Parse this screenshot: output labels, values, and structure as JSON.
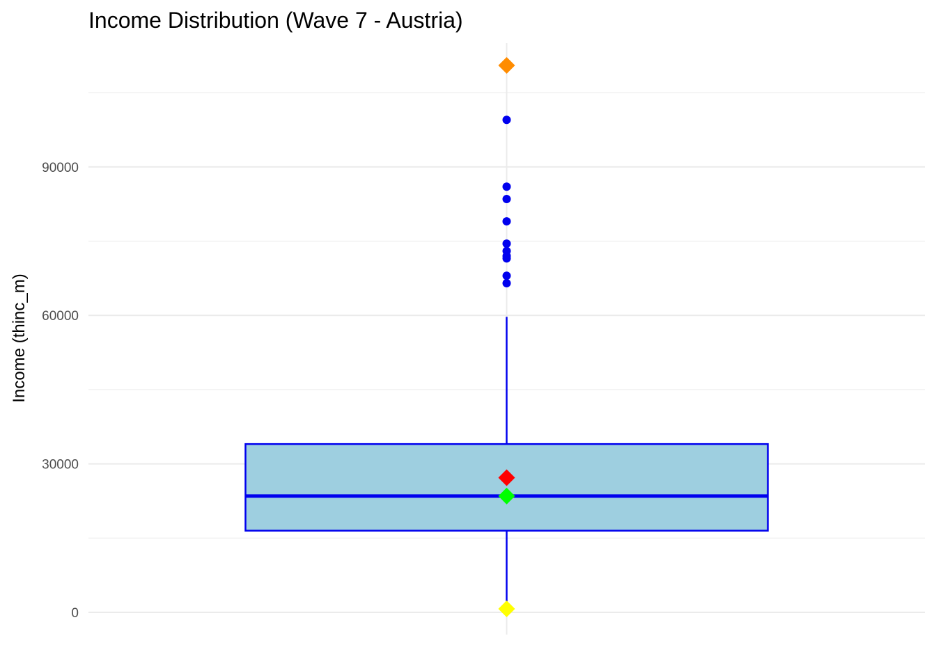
{
  "chart_data": {
    "type": "boxplot",
    "title": "Income Distribution (Wave 7 - Austria)",
    "xlabel": "",
    "ylabel": "Income (thinc_m)",
    "ylim": [
      -4500,
      115000
    ],
    "y_ticks": [
      0,
      30000,
      60000,
      90000
    ],
    "y_tick_labels": [
      "0",
      "30000",
      "60000",
      "90000"
    ],
    "y_minor_ticks": [
      15000,
      45000,
      75000,
      105000
    ],
    "grid": true,
    "box": {
      "whisker_low": 500,
      "q1": 16500,
      "median": 23500,
      "q3": 34000,
      "whisker_high": 59700,
      "fill": "#9ecfe0",
      "stroke": "#0000ee"
    },
    "outliers": [
      66500,
      68000,
      71500,
      72000,
      73000,
      74500,
      79000,
      83500,
      86000,
      99500
    ],
    "outlier_color": "#0000ee",
    "markers": [
      {
        "value": 110500,
        "color": "#ff8c00"
      },
      {
        "value": 27200,
        "color": "#ff0000"
      },
      {
        "value": 23500,
        "color": "#00ff00"
      },
      {
        "value": 700,
        "color": "#ffff00"
      }
    ],
    "colors": {
      "grid": "#ebebeb",
      "tick_label": "#4d4d4d"
    }
  }
}
